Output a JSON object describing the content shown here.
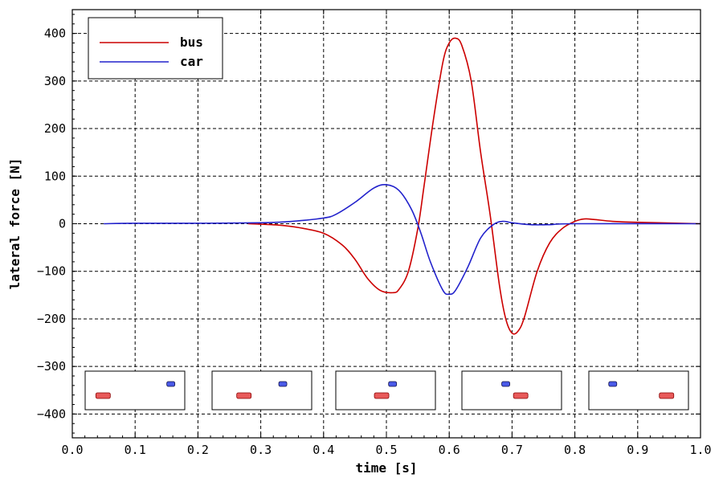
{
  "chart_data": {
    "type": "line",
    "xlabel": "time [s]",
    "ylabel": "lateral force [N]",
    "xlim": [
      0.0,
      1.0
    ],
    "ylim": [
      -450,
      450
    ],
    "xticks": [
      "0.0",
      "0.1",
      "0.2",
      "0.3",
      "0.4",
      "0.5",
      "0.6",
      "0.7",
      "0.8",
      "0.9",
      "1.0"
    ],
    "yticks": [
      "-400",
      "-300",
      "-200",
      "-100",
      "0",
      "100",
      "200",
      "300",
      "400"
    ],
    "grid": true,
    "legend_position": "top-left",
    "series": [
      {
        "name": "bus",
        "color": "#cc0000",
        "x": [
          0.28,
          0.3,
          0.33,
          0.36,
          0.4,
          0.43,
          0.45,
          0.47,
          0.49,
          0.51,
          0.52,
          0.535,
          0.55,
          0.56,
          0.575,
          0.59,
          0.6,
          0.61,
          0.62,
          0.635,
          0.65,
          0.665,
          0.68,
          0.69,
          0.7,
          0.71,
          0.72,
          0.74,
          0.76,
          0.78,
          0.8,
          0.815,
          0.83,
          0.86,
          0.9,
          1.0
        ],
        "y": [
          0,
          -1,
          -3,
          -8,
          -20,
          -45,
          -75,
          -115,
          -140,
          -145,
          -138,
          -100,
          -10,
          80,
          220,
          340,
          380,
          390,
          375,
          300,
          150,
          20,
          -130,
          -200,
          -230,
          -225,
          -195,
          -100,
          -40,
          -10,
          5,
          10,
          9,
          5,
          3,
          0
        ]
      },
      {
        "name": "car",
        "color": "#2222cc",
        "x": [
          0.05,
          0.1,
          0.2,
          0.3,
          0.35,
          0.4,
          0.42,
          0.45,
          0.48,
          0.5,
          0.52,
          0.54,
          0.555,
          0.57,
          0.59,
          0.6,
          0.61,
          0.63,
          0.65,
          0.67,
          0.685,
          0.7,
          0.73,
          0.76,
          0.8,
          1.0
        ],
        "y": [
          0,
          1,
          1,
          2,
          5,
          12,
          20,
          45,
          75,
          82,
          70,
          30,
          -20,
          -80,
          -140,
          -148,
          -140,
          -90,
          -30,
          -2,
          5,
          2,
          -2,
          -2,
          0,
          0
        ]
      }
    ]
  },
  "legend": {
    "items": [
      {
        "label": "bus",
        "color": "#cc0000"
      },
      {
        "label": "car",
        "color": "#2222cc"
      }
    ]
  },
  "insets": [
    {
      "bus_pos": 0.18,
      "car_pos": 0.86
    },
    {
      "bus_pos": 0.32,
      "car_pos": 0.71
    },
    {
      "bus_pos": 0.46,
      "car_pos": 0.57
    },
    {
      "bus_pos": 0.59,
      "car_pos": 0.44
    },
    {
      "bus_pos": 0.78,
      "car_pos": 0.24
    }
  ]
}
